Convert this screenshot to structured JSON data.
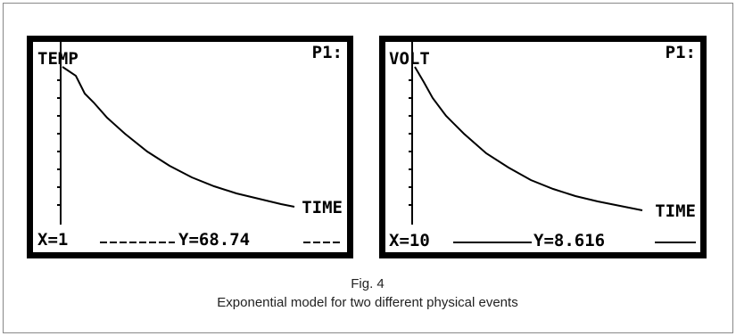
{
  "screens": [
    {
      "y_label": "TEMP",
      "plot_label": "P1:",
      "x_label": "TIME",
      "x_readout": "X=1",
      "y_readout": "Y=68.74"
    },
    {
      "y_label": "VOLT",
      "plot_label": "P1:",
      "x_label": "TIME",
      "x_readout": "X=10",
      "y_readout": "Y=8.616"
    }
  ],
  "caption": {
    "figure": "Fig. 4",
    "text": "Exponential model for two different physical events"
  }
}
